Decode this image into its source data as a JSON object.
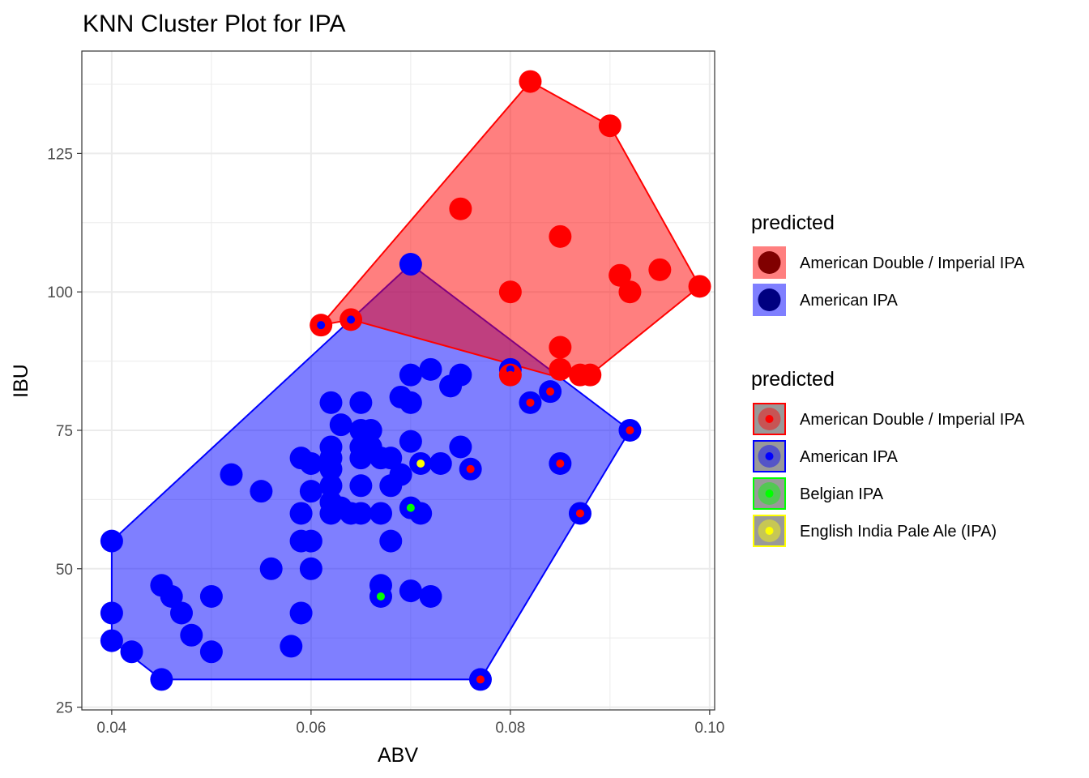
{
  "chart_data": {
    "type": "scatter",
    "title": "KNN Cluster Plot for IPA",
    "xlabel": "ABV",
    "ylabel": "IBU",
    "xlim": [
      0.037,
      0.1005
    ],
    "ylim": [
      24.5,
      143.5
    ],
    "x_ticks": [
      0.04,
      0.06,
      0.08,
      0.1
    ],
    "x_tick_labels": [
      "0.04",
      "0.06",
      "0.08",
      "0.10"
    ],
    "x_minor_ticks": [
      0.05,
      0.07,
      0.09
    ],
    "y_ticks": [
      25,
      50,
      75,
      100,
      125
    ],
    "y_tick_labels": [
      "25",
      "50",
      "75",
      "100",
      "125"
    ],
    "y_minor_ticks": [
      37.5,
      62.5,
      87.5,
      112.5,
      137.5
    ],
    "grid": true,
    "legend_position": "right",
    "colors": {
      "American Double / Imperial IPA": "#ff0000",
      "American IPA": "#0000ff",
      "Belgian IPA": "#00ff00",
      "English India Pale Ale (IPA)": "#ffff00"
    },
    "hulls": [
      {
        "name": "American Double / Imperial IPA",
        "color": "#ff0000",
        "points": [
          [
            0.061,
            94
          ],
          [
            0.082,
            138
          ],
          [
            0.09,
            130
          ],
          [
            0.099,
            101
          ],
          [
            0.088,
            85
          ],
          [
            0.084,
            85
          ],
          [
            0.064,
            95
          ]
        ]
      },
      {
        "name": "American IPA",
        "color": "#0000ff",
        "points": [
          [
            0.04,
            55
          ],
          [
            0.04,
            37
          ],
          [
            0.045,
            30
          ],
          [
            0.077,
            30
          ],
          [
            0.092,
            75
          ],
          [
            0.07,
            105
          ]
        ]
      }
    ],
    "series": [
      {
        "name": "American Double / Imperial IPA",
        "predicted": "American Double / Imperial IPA",
        "points": [
          [
            0.082,
            138,
            "American Double / Imperial IPA"
          ],
          [
            0.09,
            130,
            "American Double / Imperial IPA"
          ],
          [
            0.075,
            115,
            "American Double / Imperial IPA"
          ],
          [
            0.085,
            110,
            "American Double / Imperial IPA"
          ],
          [
            0.095,
            104,
            "American Double / Imperial IPA"
          ],
          [
            0.091,
            103,
            "American Double / Imperial IPA"
          ],
          [
            0.099,
            101,
            "American Double / Imperial IPA"
          ],
          [
            0.08,
            100,
            "American Double / Imperial IPA"
          ],
          [
            0.092,
            100,
            "American Double / Imperial IPA"
          ],
          [
            0.061,
            94,
            "American IPA"
          ],
          [
            0.064,
            95,
            "American IPA"
          ],
          [
            0.085,
            90,
            "American Double / Imperial IPA"
          ],
          [
            0.085,
            86,
            "American Double / Imperial IPA"
          ],
          [
            0.087,
            85,
            "American Double / Imperial IPA"
          ],
          [
            0.088,
            85,
            "American Double / Imperial IPA"
          ],
          [
            0.08,
            85,
            "American Double / Imperial IPA"
          ]
        ]
      },
      {
        "name": "American IPA",
        "predicted": "American IPA",
        "points": [
          [
            0.07,
            105,
            "American IPA"
          ],
          [
            0.08,
            86,
            "American IPA"
          ],
          [
            0.072,
            86,
            "American IPA"
          ],
          [
            0.07,
            85,
            "American IPA"
          ],
          [
            0.075,
            85,
            "American IPA"
          ],
          [
            0.074,
            83,
            "American IPA"
          ],
          [
            0.069,
            81,
            "American IPA"
          ],
          [
            0.062,
            80,
            "American IPA"
          ],
          [
            0.065,
            80,
            "American IPA"
          ],
          [
            0.07,
            80,
            "American IPA"
          ],
          [
            0.082,
            80,
            "American Double / Imperial IPA"
          ],
          [
            0.084,
            82,
            "American Double / Imperial IPA"
          ],
          [
            0.063,
            76,
            "American IPA"
          ],
          [
            0.065,
            75,
            "American IPA"
          ],
          [
            0.066,
            75,
            "American IPA"
          ],
          [
            0.092,
            75,
            "American Double / Imperial IPA"
          ],
          [
            0.07,
            73,
            "American IPA"
          ],
          [
            0.062,
            72,
            "American IPA"
          ],
          [
            0.065,
            72,
            "American IPA"
          ],
          [
            0.066,
            72,
            "American IPA"
          ],
          [
            0.075,
            72,
            "American IPA"
          ],
          [
            0.059,
            70,
            "American IPA"
          ],
          [
            0.062,
            70,
            "American IPA"
          ],
          [
            0.065,
            70,
            "American IPA"
          ],
          [
            0.067,
            70,
            "American IPA"
          ],
          [
            0.068,
            70,
            "American IPA"
          ],
          [
            0.06,
            69,
            "American IPA"
          ],
          [
            0.073,
            69,
            "American IPA"
          ],
          [
            0.071,
            69,
            "English India Pale Ale (IPA)"
          ],
          [
            0.085,
            69,
            "American Double / Imperial IPA"
          ],
          [
            0.062,
            68,
            "American IPA"
          ],
          [
            0.076,
            68,
            "American Double / Imperial IPA"
          ],
          [
            0.052,
            67,
            "American IPA"
          ],
          [
            0.069,
            67,
            "American IPA"
          ],
          [
            0.062,
            65,
            "American IPA"
          ],
          [
            0.065,
            65,
            "American IPA"
          ],
          [
            0.068,
            65,
            "American IPA"
          ],
          [
            0.055,
            64,
            "American IPA"
          ],
          [
            0.06,
            64,
            "American IPA"
          ],
          [
            0.062,
            62,
            "American IPA"
          ],
          [
            0.063,
            61,
            "American IPA"
          ],
          [
            0.07,
            61,
            "Belgian IPA"
          ],
          [
            0.059,
            60,
            "American IPA"
          ],
          [
            0.062,
            60,
            "American IPA"
          ],
          [
            0.064,
            60,
            "American IPA"
          ],
          [
            0.065,
            60,
            "American IPA"
          ],
          [
            0.067,
            60,
            "American IPA"
          ],
          [
            0.071,
            60,
            "American IPA"
          ],
          [
            0.087,
            60,
            "American Double / Imperial IPA"
          ],
          [
            0.04,
            55,
            "American IPA"
          ],
          [
            0.059,
            55,
            "American IPA"
          ],
          [
            0.06,
            55,
            "American IPA"
          ],
          [
            0.068,
            55,
            "American IPA"
          ],
          [
            0.056,
            50,
            "American IPA"
          ],
          [
            0.06,
            50,
            "American IPA"
          ],
          [
            0.045,
            47,
            "American IPA"
          ],
          [
            0.067,
            47,
            "American IPA"
          ],
          [
            0.07,
            46,
            "American IPA"
          ],
          [
            0.046,
            45,
            "American IPA"
          ],
          [
            0.05,
            45,
            "American IPA"
          ],
          [
            0.072,
            45,
            "American IPA"
          ],
          [
            0.067,
            45,
            "Belgian IPA"
          ],
          [
            0.04,
            42,
            "American IPA"
          ],
          [
            0.047,
            42,
            "American IPA"
          ],
          [
            0.059,
            42,
            "American IPA"
          ],
          [
            0.048,
            38,
            "American IPA"
          ],
          [
            0.04,
            37,
            "American IPA"
          ],
          [
            0.058,
            36,
            "American IPA"
          ],
          [
            0.042,
            35,
            "American IPA"
          ],
          [
            0.05,
            35,
            "American IPA"
          ],
          [
            0.045,
            30,
            "American IPA"
          ],
          [
            0.077,
            30,
            "American Double / Imperial IPA"
          ]
        ]
      }
    ],
    "legends": [
      {
        "title": "predicted",
        "items": [
          {
            "label": "American Double / Imperial IPA",
            "fill": "#ff0000",
            "dot": "#800000"
          },
          {
            "label": "American IPA",
            "fill": "#0000ff",
            "dot": "#000080"
          }
        ]
      },
      {
        "title": "predicted",
        "items": [
          {
            "label": "American Double / Imperial IPA",
            "border": "#ff0000",
            "dot": "#ff0000"
          },
          {
            "label": "American IPA",
            "border": "#0000ff",
            "dot": "#0000ff"
          },
          {
            "label": "Belgian IPA",
            "border": "#00ff00",
            "dot": "#00ff00"
          },
          {
            "label": "English India Pale Ale (IPA)",
            "border": "#ffff00",
            "dot": "#ffff00"
          }
        ]
      }
    ]
  }
}
